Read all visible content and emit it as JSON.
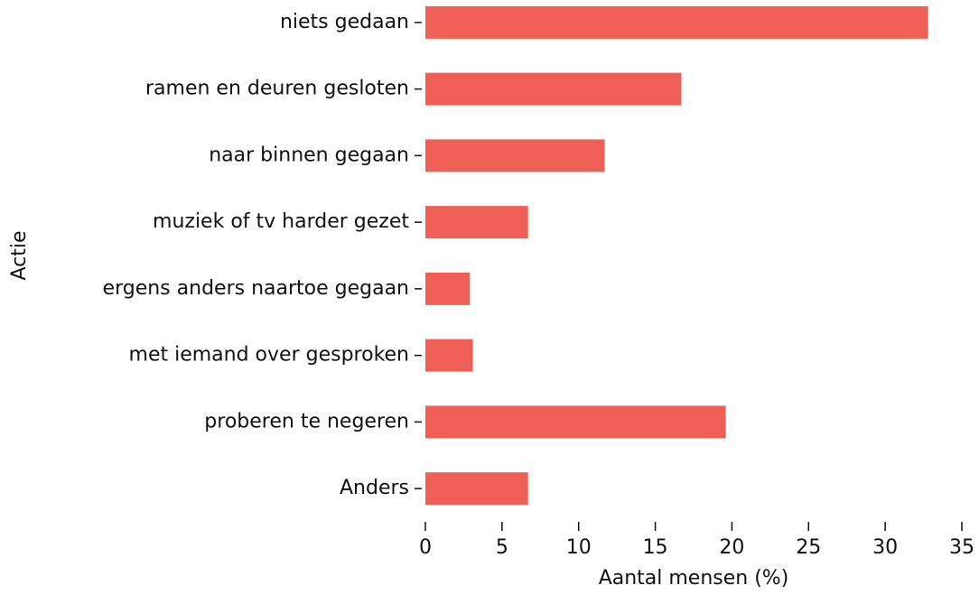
{
  "chart_data": {
    "type": "bar",
    "orientation": "horizontal",
    "categories": [
      "niets gedaan",
      "ramen en deuren gesloten",
      "naar binnen gegaan",
      "muziek of tv harder gezet",
      "ergens anders naartoe gegaan",
      "met iemand over gesproken",
      "proberen te negeren",
      "Anders"
    ],
    "values": [
      32.8,
      16.7,
      11.7,
      6.7,
      2.9,
      3.1,
      19.6,
      6.7
    ],
    "color": "#f05f55",
    "xlim": [
      0,
      35
    ],
    "xticks": [
      0,
      5,
      10,
      15,
      20,
      25,
      30,
      35
    ],
    "x_label": "Aantal mensen (%)",
    "y_label": "Actie",
    "grid": false
  }
}
